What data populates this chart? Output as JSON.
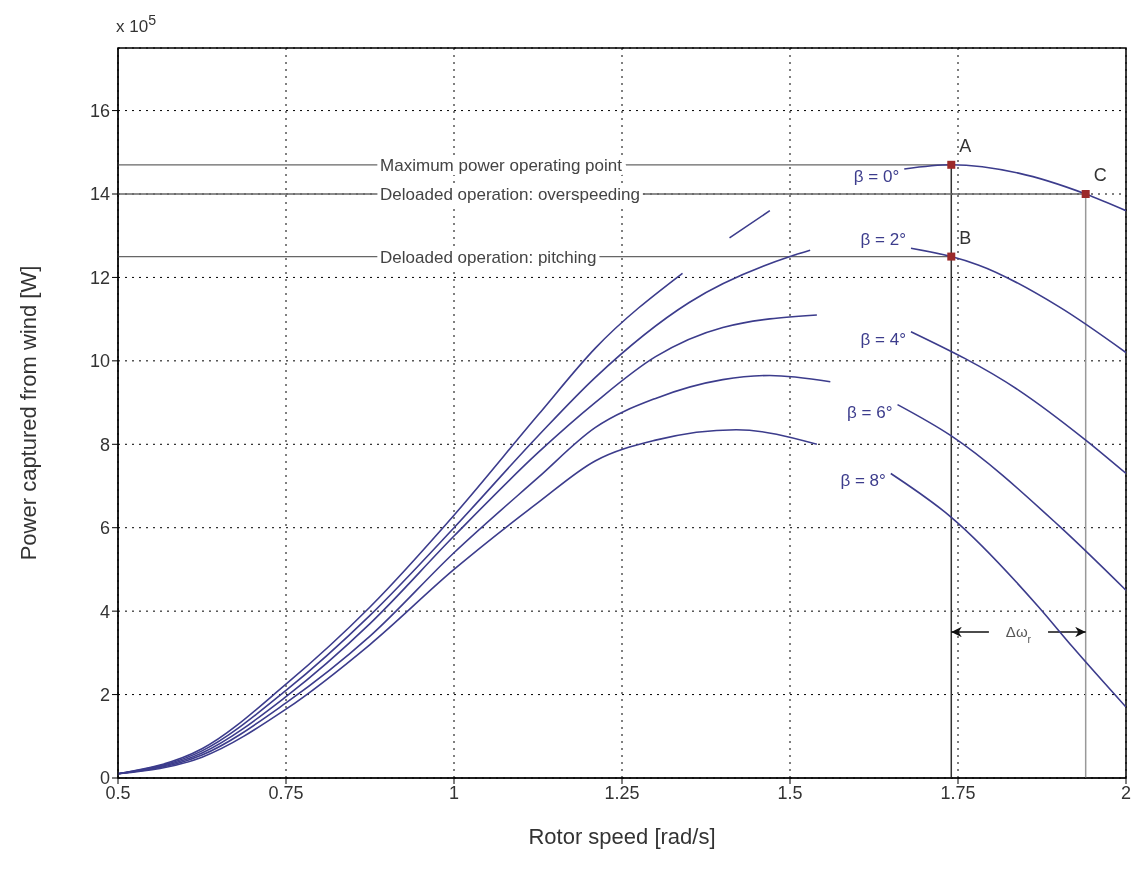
{
  "chart_data": {
    "type": "line",
    "xlabel": "Rotor speed [rad/s]",
    "ylabel": "Power captured from wind [W]",
    "xlim": [
      0.5,
      2
    ],
    "xticks": [
      0.5,
      0.75,
      1,
      1.25,
      1.5,
      1.75,
      2
    ],
    "ylim": [
      0,
      17.5
    ],
    "yticks": [
      0,
      2,
      4,
      6,
      8,
      10,
      12,
      14,
      16
    ],
    "grid": true,
    "marker": "none",
    "series": [
      {
        "name": "β = 0°",
        "color": "#3c3c8c",
        "x": [
          0.5,
          0.625,
          0.75,
          0.875,
          1.0,
          1.125,
          1.21,
          1.34,
          1.4,
          1.41,
          1.47,
          1.5,
          1.67,
          1.74,
          1.84,
          1.94,
          2.0
        ],
        "values": [
          0.1,
          0.7,
          2.25,
          4.1,
          6.3,
          8.7,
          10.3,
          12.1,
          null,
          12.95,
          13.6,
          null,
          14.6,
          14.7,
          14.5,
          14.0,
          13.6
        ]
      },
      {
        "name": "β = 2°",
        "color": "#3c3c8c",
        "x": [
          0.5,
          0.625,
          0.75,
          0.875,
          1.0,
          1.125,
          1.21,
          1.35,
          1.5,
          1.53,
          1.6,
          1.68,
          1.74,
          1.78,
          1.9,
          2.0
        ],
        "values": [
          0.1,
          0.65,
          2.1,
          3.9,
          6.0,
          8.2,
          9.6,
          11.4,
          12.5,
          12.65,
          null,
          12.7,
          12.5,
          12.3,
          11.3,
          10.2
        ]
      },
      {
        "name": "β = 4°",
        "color": "#3c3c8c",
        "x": [
          0.5,
          0.625,
          0.75,
          0.875,
          1.0,
          1.125,
          1.21,
          1.3,
          1.4,
          1.54,
          1.6,
          1.68,
          1.84,
          1.94,
          2.0
        ],
        "values": [
          0.1,
          0.6,
          1.95,
          3.7,
          5.8,
          7.8,
          9.0,
          10.1,
          10.8,
          11.1,
          null,
          10.7,
          9.3,
          8.1,
          7.3
        ]
      },
      {
        "name": "β = 6°",
        "color": "#3c3c8c",
        "x": [
          0.5,
          0.625,
          0.75,
          0.875,
          1.0,
          1.125,
          1.21,
          1.3,
          1.4,
          1.47,
          1.56,
          1.6,
          1.66,
          1.74,
          1.9,
          2.0
        ],
        "values": [
          0.1,
          0.55,
          1.8,
          3.4,
          5.4,
          7.2,
          8.4,
          9.1,
          9.55,
          9.65,
          9.5,
          null,
          8.95,
          8.2,
          6.05,
          4.5
        ]
      },
      {
        "name": "β = 8°",
        "color": "#3c3c8c",
        "x": [
          0.5,
          0.625,
          0.75,
          0.875,
          1.0,
          1.125,
          1.21,
          1.3,
          1.42,
          1.54,
          1.6,
          1.65,
          1.74,
          1.87,
          1.92,
          2.0
        ],
        "values": [
          0.1,
          0.5,
          1.65,
          3.2,
          5.0,
          6.6,
          7.6,
          8.1,
          8.35,
          8.0,
          null,
          7.3,
          6.25,
          4.1,
          3.15,
          1.7
        ]
      },
      {
        "type": "scatter",
        "marker": "square",
        "color": "#9b2a2a",
        "x": [
          1.74,
          1.74,
          1.94
        ],
        "values": [
          14.7,
          12.5,
          14.0
        ],
        "value_labels": [
          "A",
          "B",
          "C"
        ]
      }
    ],
    "ref_lines": [
      {
        "axis": "x",
        "value": 1.74,
        "color": "#333333"
      },
      {
        "axis": "x",
        "value": 1.94,
        "color": "#999999"
      },
      {
        "axis": "y",
        "value": 14.7,
        "label": "Maximum power operating point",
        "color": "#666666"
      },
      {
        "axis": "y",
        "value": 14.0,
        "label": "Deloaded operation: overspeeding",
        "color": "#666666"
      },
      {
        "axis": "y",
        "value": 12.5,
        "label": "Deloaded operation: pitching",
        "color": "#666666"
      }
    ],
    "annotations": [
      "x 10$^{5}$",
      {
        "text": "Δω$_{r}$",
        "x": 1.74,
        "y": 3.5
      }
    ]
  }
}
